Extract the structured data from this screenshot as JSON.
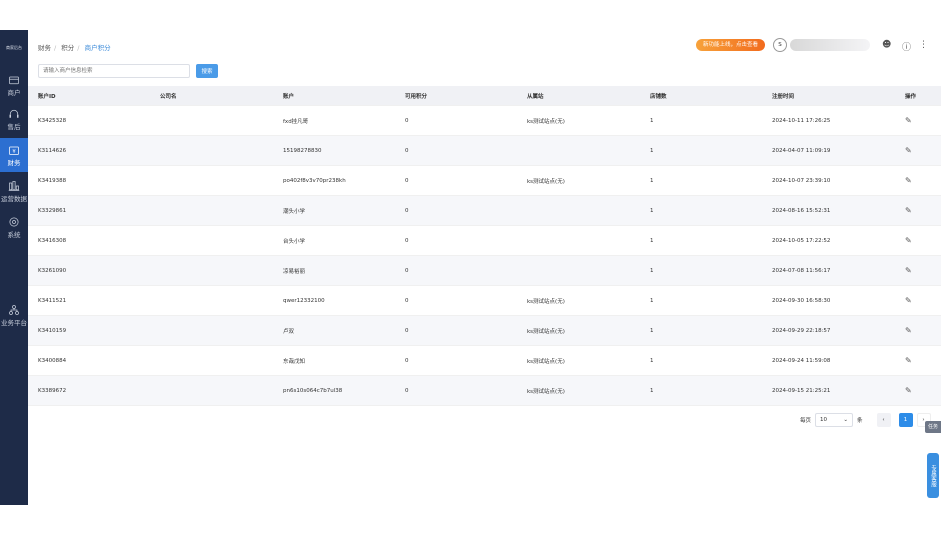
{
  "sidebar": {
    "logo": "商家后台",
    "items": [
      {
        "label": "商户",
        "icon": "store-icon"
      },
      {
        "label": "售后",
        "icon": "headset-icon"
      },
      {
        "label": "财务",
        "icon": "finance-icon",
        "active": true
      },
      {
        "label": "运营数据",
        "icon": "chart-icon"
      },
      {
        "label": "系统",
        "icon": "gear-icon"
      },
      {
        "label": "业务平台",
        "icon": "org-icon"
      }
    ]
  },
  "breadcrumb": [
    "财务",
    "积分",
    "商户积分"
  ],
  "header": {
    "promo": "新功能上线，点击查看",
    "avatar": "S"
  },
  "search": {
    "placeholder": "请输入商户信息检索",
    "button": "搜索"
  },
  "table": {
    "columns": [
      "账户ID",
      "公司名",
      "账户",
      "可用积分",
      "从属站",
      "店铺数",
      "注册时间",
      "操作"
    ],
    "rows": [
      [
        "K3425328",
        "",
        "fxd挂凡哥",
        "0",
        "ks测试站点(无)",
        "1",
        "2024-10-11 17:26:25"
      ],
      [
        "K3114626",
        "",
        "15198278830",
        "0",
        "",
        "1",
        "2024-04-07 11:09:19"
      ],
      [
        "K3419388",
        "",
        "po402f8v3v70pr238kh",
        "0",
        "ks测试站点(无)",
        "1",
        "2024-10-07 23:39:10"
      ],
      [
        "K3329861",
        "",
        "潮头小学",
        "0",
        "",
        "1",
        "2024-08-16 15:52:31"
      ],
      [
        "K3416308",
        "",
        "台头小学",
        "0",
        "",
        "1",
        "2024-10-05 17:22:52"
      ],
      [
        "K3261090",
        "",
        "凉易裕丽",
        "0",
        "",
        "1",
        "2024-07-08 11:56:17"
      ],
      [
        "K3411521",
        "",
        "qwer12332100",
        "0",
        "ks测试站点(无)",
        "1",
        "2024-09-30 16:58:30"
      ],
      [
        "K3410159",
        "",
        "卢双",
        "0",
        "ks测试站点(无)",
        "1",
        "2024-09-29 22:18:57"
      ],
      [
        "K3400884",
        "",
        "东哉戊知",
        "0",
        "ks测试站点(无)",
        "1",
        "2024-09-24 11:59:08"
      ],
      [
        "K3389672",
        "",
        "pn6s10s064c7b7ul38",
        "0",
        "ks测试站点(无)",
        "1",
        "2024-09-15 21:25:21"
      ]
    ]
  },
  "pagination": {
    "per_page_label": "每页",
    "page_size": "10",
    "unit": "条",
    "current": "1"
  },
  "float": {
    "task": "任务",
    "service": "专属客服"
  }
}
